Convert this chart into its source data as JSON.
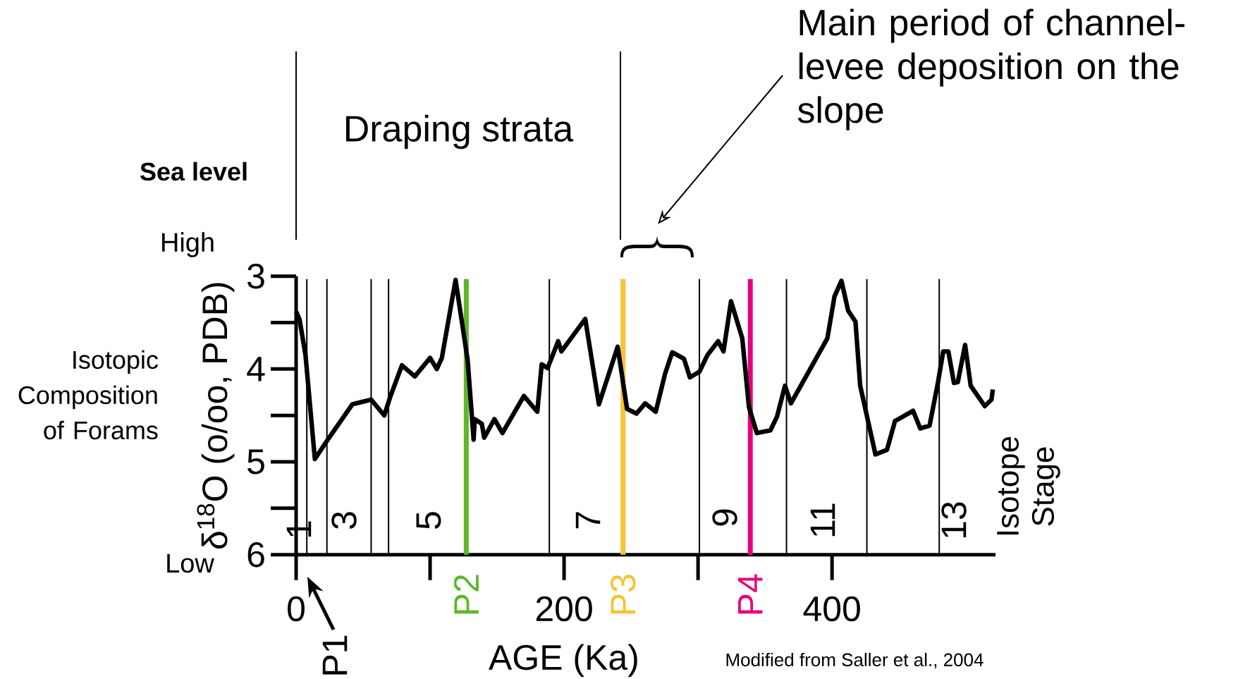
{
  "chart_data": {
    "type": "line",
    "xlabel": "AGE (Ka)",
    "ylabel": "δ$^{18}$O (o/oo, PDB)",
    "x": [
      0,
      2.6,
      7,
      14,
      24.6,
      42,
      56,
      65.8,
      70,
      79,
      88.6,
      100,
      105,
      108.8,
      119,
      128,
      132.5,
      133.3,
      138.6,
      140.4,
      148,
      154,
      170,
      180,
      183.3,
      187.7,
      195.6,
      198,
      215.8,
      226,
      240,
      247,
      254,
      260.5,
      268.4,
      275.4,
      280.7,
      289.5,
      293.9,
      301,
      307,
      315,
      319,
      324.6,
      333,
      338,
      343.9,
      354,
      359,
      364.9,
      369.3,
      396.5,
      401.8,
      407,
      412,
      417.5,
      421,
      432.4,
      441,
      447,
      460.5,
      465.8,
      472.8,
      479,
      483,
      486.8,
      491,
      493.9,
      499.3,
      503.5,
      514,
      519,
      520
    ],
    "series": [
      {
        "color": "#000000",
        "values": [
          3.38,
          3.47,
          3.85,
          4.97,
          4.74,
          4.38,
          4.33,
          4.5,
          4.31,
          3.96,
          4.08,
          3.88,
          4.0,
          3.88,
          3.04,
          3.9,
          4.76,
          4.54,
          4.59,
          4.74,
          4.54,
          4.69,
          4.29,
          4.46,
          3.95,
          3.99,
          3.7,
          3.81,
          3.46,
          4.38,
          3.76,
          4.43,
          4.48,
          4.37,
          4.46,
          4.05,
          3.82,
          3.89,
          4.09,
          4.03,
          3.85,
          3.7,
          3.81,
          3.27,
          3.67,
          4.41,
          4.69,
          4.66,
          4.51,
          4.18,
          4.37,
          3.67,
          3.22,
          3.05,
          3.37,
          3.49,
          4.18,
          4.92,
          4.87,
          4.56,
          4.45,
          4.64,
          4.61,
          4.15,
          3.81,
          3.81,
          4.15,
          4.14,
          3.74,
          4.18,
          4.4,
          4.33,
          4.22
        ]
      }
    ],
    "xlim": [
      0,
      522
    ],
    "ylim": [
      6,
      3
    ],
    "xticks": [
      0,
      200,
      400
    ],
    "yticks": [
      3,
      4,
      5,
      6
    ],
    "ref_lines": [
      {
        "axis": "x",
        "value": 8,
        "color": "#000000"
      },
      {
        "axis": "x",
        "value": 23,
        "color": "#000000"
      },
      {
        "axis": "x",
        "value": 56,
        "color": "#000000"
      },
      {
        "axis": "x",
        "value": 69,
        "color": "#000000"
      },
      {
        "axis": "x",
        "value": 127,
        "label": "P2",
        "color": "#5cb82a"
      },
      {
        "axis": "x",
        "value": 189,
        "color": "#000000"
      },
      {
        "axis": "x",
        "value": 244,
        "label": "P3",
        "color": "#f5c334"
      },
      {
        "axis": "x",
        "value": 301,
        "color": "#000000"
      },
      {
        "axis": "x",
        "value": 339,
        "label": "P4",
        "color": "#e6007e"
      },
      {
        "axis": "x",
        "value": 366,
        "color": "#000000"
      },
      {
        "axis": "x",
        "value": 426,
        "color": "#000000"
      },
      {
        "axis": "x",
        "value": 480,
        "color": "#000000"
      }
    ],
    "annotations": [
      "1",
      "3",
      "5",
      "7",
      "9",
      "11",
      "13",
      "P1",
      "Sea level",
      "High",
      "Low",
      "Isotopic Composition of Forams",
      "Isotope Stage",
      "Modified from Saller et al., 2004",
      "Draping strata",
      "Main period of channel-levee deposition on the slope"
    ]
  }
}
